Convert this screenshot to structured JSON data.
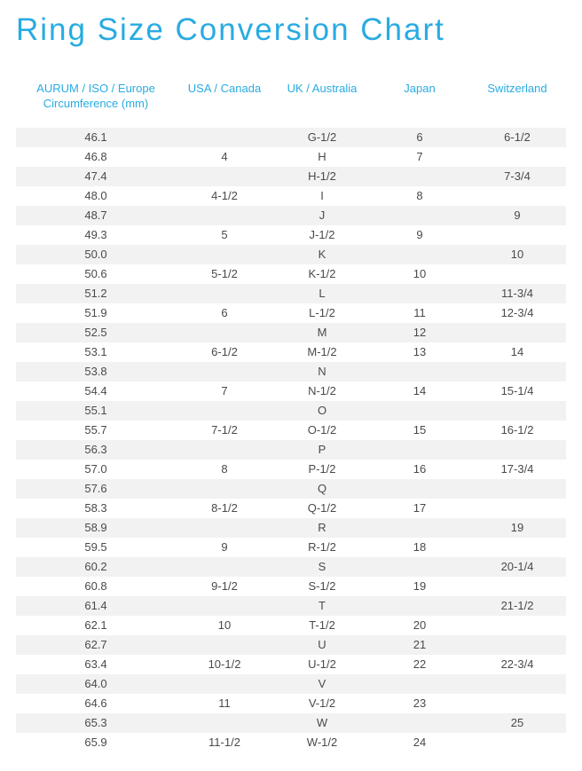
{
  "title": "Ring Size Conversion Chart",
  "title_color": "#29abe2",
  "title_fontsize": 35,
  "header_color": "#29abe2",
  "header_fontsize": 13,
  "cell_fontsize": 13,
  "cell_color": "#4a4a4a",
  "stripe_even": "#f2f2f2",
  "stripe_odd": "#ffffff",
  "columns": [
    "AURUM / ISO / Europe\nCircumference (mm)",
    "USA / Canada",
    "UK / Australia",
    "Japan",
    "Switzerland"
  ],
  "rows": [
    [
      "46.1",
      "",
      "G-1/2",
      "6",
      "6-1/2"
    ],
    [
      "46.8",
      "4",
      "H",
      "7",
      ""
    ],
    [
      "47.4",
      "",
      "H-1/2",
      "",
      "7-3/4"
    ],
    [
      "48.0",
      "4-1/2",
      "I",
      "8",
      ""
    ],
    [
      "48.7",
      "",
      "J",
      "",
      "9"
    ],
    [
      "49.3",
      "5",
      "J-1/2",
      "9",
      ""
    ],
    [
      "50.0",
      "",
      "K",
      "",
      "10"
    ],
    [
      "50.6",
      "5-1/2",
      "K-1/2",
      "10",
      ""
    ],
    [
      "51.2",
      "",
      "L",
      "",
      "11-3/4"
    ],
    [
      "51.9",
      "6",
      "L-1/2",
      "11",
      "12-3/4"
    ],
    [
      "52.5",
      "",
      "M",
      "12",
      ""
    ],
    [
      "53.1",
      "6-1/2",
      "M-1/2",
      "13",
      "14"
    ],
    [
      "53.8",
      "",
      "N",
      "",
      ""
    ],
    [
      "54.4",
      "7",
      "N-1/2",
      "14",
      "15-1/4"
    ],
    [
      "55.1",
      "",
      "O",
      "",
      ""
    ],
    [
      "55.7",
      "7-1/2",
      "O-1/2",
      "15",
      "16-1/2"
    ],
    [
      "56.3",
      "",
      "P",
      "",
      ""
    ],
    [
      "57.0",
      "8",
      "P-1/2",
      "16",
      "17-3/4"
    ],
    [
      "57.6",
      "",
      "Q",
      "",
      ""
    ],
    [
      "58.3",
      "8-1/2",
      "Q-1/2",
      "17",
      ""
    ],
    [
      "58.9",
      "",
      "R",
      "",
      "19"
    ],
    [
      "59.5",
      "9",
      "R-1/2",
      "18",
      ""
    ],
    [
      "60.2",
      "",
      "S",
      "",
      "20-1/4"
    ],
    [
      "60.8",
      "9-1/2",
      "S-1/2",
      "19",
      ""
    ],
    [
      "61.4",
      "",
      "T",
      "",
      "21-1/2"
    ],
    [
      "62.1",
      "10",
      "T-1/2",
      "20",
      ""
    ],
    [
      "62.7",
      "",
      "U",
      "21",
      ""
    ],
    [
      "63.4",
      "10-1/2",
      "U-1/2",
      "22",
      "22-3/4"
    ],
    [
      "64.0",
      "",
      "V",
      "",
      ""
    ],
    [
      "64.6",
      "11",
      "V-1/2",
      "23",
      ""
    ],
    [
      "65.3",
      "",
      "W",
      "",
      "25"
    ],
    [
      "65.9",
      "11-1/2",
      "W-1/2",
      "24",
      ""
    ]
  ]
}
